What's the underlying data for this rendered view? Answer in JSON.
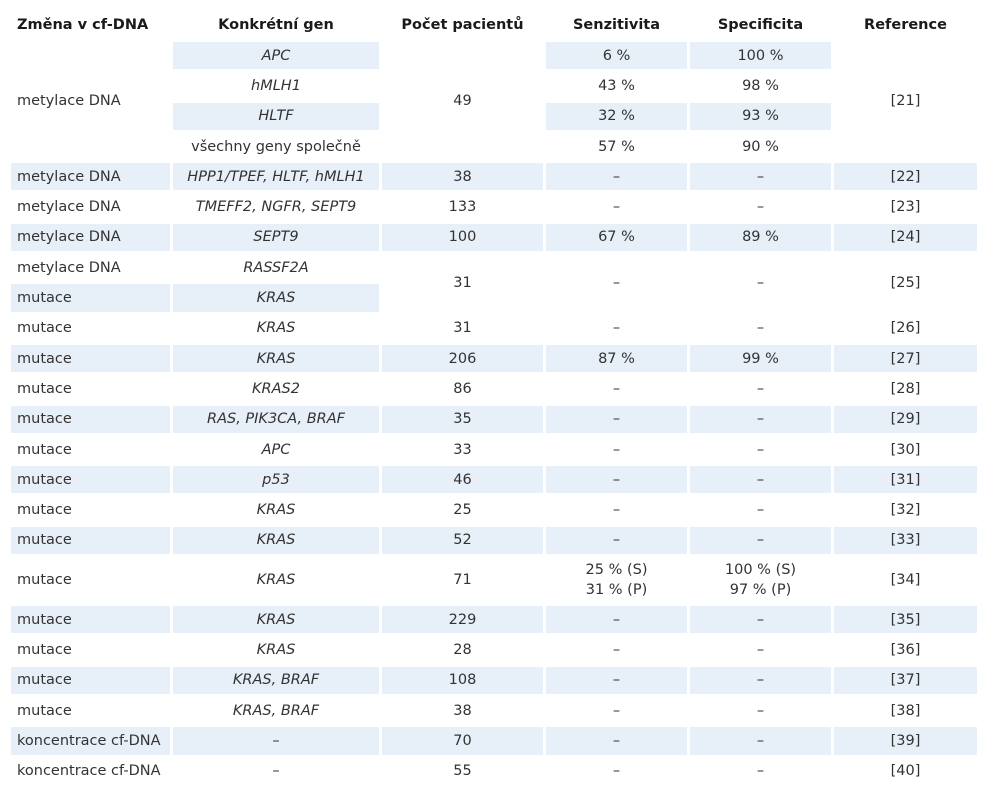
{
  "headers": [
    "Změna v cf-DNA",
    "Konkrétní gen",
    "Počet pacientů",
    "Senzitivita",
    "Specificita",
    "Reference"
  ],
  "group1": {
    "change": "metylace DNA",
    "patients": "49",
    "reference": "[21]",
    "rows": [
      {
        "gene": "APC",
        "sens": "6 %",
        "spec": "100 %"
      },
      {
        "gene": "hMLH1",
        "sens": "43 %",
        "spec": "98 %"
      },
      {
        "gene": "HLTF",
        "sens": "32 %",
        "spec": "93 %"
      },
      {
        "gene": "všechny geny společně",
        "sens": "57 %",
        "spec": "90 %"
      }
    ]
  },
  "r22": {
    "change": "metylace DNA",
    "gene": "HPP1/TPEF, HLTF, hMLH1",
    "patients": "38",
    "sens": "–",
    "spec": "–",
    "ref": "[22]"
  },
  "r23": {
    "change": "metylace DNA",
    "gene": "TMEFF2, NGFR, SEPT9",
    "patients": "133",
    "sens": "–",
    "spec": "–",
    "ref": "[23]"
  },
  "r24": {
    "change": "metylace DNA",
    "gene": "SEPT9",
    "patients": "100",
    "sens": "67 %",
    "spec": "89 %",
    "ref": "[24]"
  },
  "group25": {
    "change_a": "metylace DNA",
    "gene_a": "RASSF2A",
    "change_b": "mutace",
    "gene_b": "KRAS",
    "patients": "31",
    "sens": "–",
    "spec": "–",
    "ref": "[25]"
  },
  "r26": {
    "change": "mutace",
    "gene": "KRAS",
    "patients": "31",
    "sens": "–",
    "spec": "–",
    "ref": "[26]"
  },
  "r27": {
    "change": "mutace",
    "gene": "KRAS",
    "patients": "206",
    "sens": "87 %",
    "spec": "99 %",
    "ref": "[27]"
  },
  "r28": {
    "change": "mutace",
    "gene": "KRAS2",
    "patients": "86",
    "sens": "–",
    "spec": "–",
    "ref": "[28]"
  },
  "r29": {
    "change": "mutace",
    "gene": "RAS, PIK3CA, BRAF",
    "patients": "35",
    "sens": "–",
    "spec": "–",
    "ref": "[29]"
  },
  "r30": {
    "change": "mutace",
    "gene": "APC",
    "patients": "33",
    "sens": "–",
    "spec": "–",
    "ref": "[30]"
  },
  "r31": {
    "change": "mutace",
    "gene": "p53",
    "patients": "46",
    "sens": "–",
    "spec": "–",
    "ref": "[31]"
  },
  "r32": {
    "change": "mutace",
    "gene": "KRAS",
    "patients": "25",
    "sens": "–",
    "spec": "–",
    "ref": "[32]"
  },
  "r33": {
    "change": "mutace",
    "gene": "KRAS",
    "patients": "52",
    "sens": "–",
    "spec": "–",
    "ref": "[33]"
  },
  "r34": {
    "change": "mutace",
    "gene": "KRAS",
    "patients": "71",
    "sens1": "25 % (S)",
    "sens2": "31 % (P)",
    "spec1": "100 % (S)",
    "spec2": "97 % (P)",
    "ref": "[34]"
  },
  "r35": {
    "change": "mutace",
    "gene": "KRAS",
    "patients": "229",
    "sens": "–",
    "spec": "–",
    "ref": "[35]"
  },
  "r36": {
    "change": "mutace",
    "gene": "KRAS",
    "patients": "28",
    "sens": "–",
    "spec": "–",
    "ref": "[36]"
  },
  "r37": {
    "change": "mutace",
    "gene": "KRAS, BRAF",
    "patients": "108",
    "sens": "–",
    "spec": "–",
    "ref": "[37]"
  },
  "r38": {
    "change": "mutace",
    "gene": "KRAS, BRAF",
    "patients": "38",
    "sens": "–",
    "spec": "–",
    "ref": "[38]"
  },
  "r39": {
    "change": "koncentrace cf-DNA",
    "gene": "–",
    "patients": "70",
    "sens": "–",
    "spec": "–",
    "ref": "[39]"
  },
  "r40": {
    "change": "koncentrace cf-DNA",
    "gene": "–",
    "patients": "55",
    "sens": "–",
    "spec": "–",
    "ref": "[40]"
  },
  "colors": {
    "row_shade": "#e7eff8",
    "text": "#333333"
  }
}
